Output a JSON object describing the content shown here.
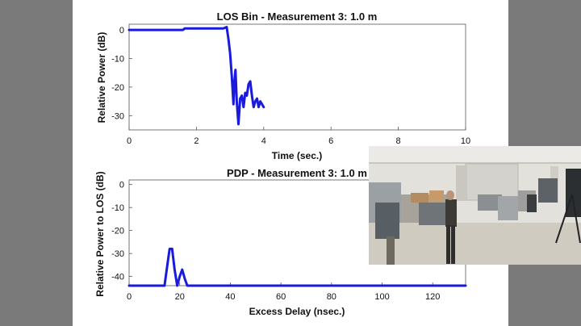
{
  "chart_data": [
    {
      "type": "line",
      "title": "LOS Bin - Measurement 3: 1.0 m",
      "xlabel": "Time (sec.)",
      "ylabel": "Relative Power (dB)",
      "xlim": [
        0,
        10
      ],
      "ylim": [
        -35,
        2
      ],
      "xticks": [
        0,
        2,
        4,
        6,
        8,
        10
      ],
      "yticks": [
        0,
        -10,
        -20,
        -30
      ],
      "grid": false,
      "series": [
        {
          "color": "#1a1adc",
          "x": [
            0,
            0.5,
            1.0,
            1.6,
            1.65,
            2.0,
            2.5,
            2.8,
            2.9,
            2.95,
            3.0,
            3.05,
            3.1,
            3.13,
            3.16,
            3.2,
            3.25,
            3.3,
            3.35,
            3.4,
            3.45,
            3.5,
            3.55,
            3.6,
            3.65,
            3.7,
            3.75,
            3.8,
            3.85,
            3.9,
            3.95,
            4.0
          ],
          "y": [
            0,
            0,
            0,
            0,
            0.5,
            0.5,
            0.5,
            0.5,
            1.0,
            -3,
            -8,
            -16,
            -26,
            -18,
            -14,
            -25,
            -33,
            -24,
            -23,
            -27,
            -22,
            -23,
            -19,
            -18,
            -23,
            -27,
            -25,
            -24,
            -27,
            -25,
            -26,
            -27
          ]
        }
      ]
    },
    {
      "type": "line",
      "title": "PDP - Measurement 3: 1.0 m",
      "xlabel": "Excess Delay (nsec.)",
      "ylabel": "Relative Power to LOS (dB)",
      "xlim": [
        0,
        133
      ],
      "ylim": [
        -44,
        2
      ],
      "xticks": [
        0,
        20,
        40,
        60,
        80,
        100,
        120
      ],
      "yticks": [
        0,
        -10,
        -20,
        -30,
        -40
      ],
      "grid": false,
      "series": [
        {
          "color": "#1a1adc",
          "x": [
            0,
            10,
            14,
            15,
            16,
            17,
            18,
            19,
            20,
            21,
            22,
            23,
            30,
            60,
            100,
            133
          ],
          "y": [
            -44,
            -44,
            -44,
            -36,
            -28,
            -28,
            -37,
            -44,
            -40,
            -37,
            -41,
            -44,
            -44,
            -44,
            -44,
            -44
          ]
        }
      ]
    }
  ]
}
